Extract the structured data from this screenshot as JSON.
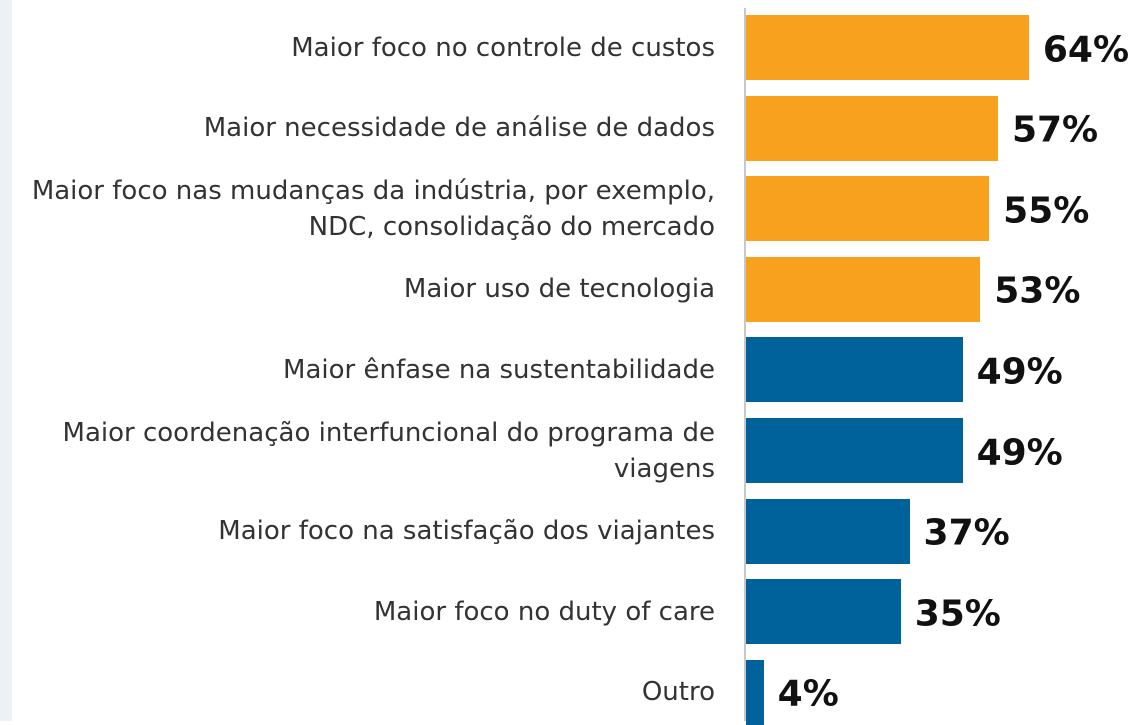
{
  "chart_data": {
    "type": "bar",
    "orientation": "horizontal",
    "categories": [
      "Maior foco no controle de custos",
      "Maior necessidade de análise de dados",
      "Maior foco nas mudanças da indústria, por exemplo, NDC, consolidação do mercado",
      "Maior uso de tecnologia",
      "Maior ênfase na sustentabilidade",
      "Maior coordenação interfuncional do programa de viagens",
      "Maior foco na satisfação dos viajantes",
      "Maior foco no duty of care",
      "Outro"
    ],
    "values": [
      64,
      57,
      55,
      53,
      49,
      49,
      37,
      35,
      4
    ],
    "value_labels": [
      "64%",
      "57%",
      "55%",
      "53%",
      "49%",
      "49%",
      "37%",
      "35%",
      "4%"
    ],
    "colors": [
      "#f7a11f",
      "#f7a11f",
      "#f7a11f",
      "#f7a11f",
      "#00629b",
      "#00629b",
      "#00629b",
      "#00629b",
      "#00629b"
    ]
  }
}
